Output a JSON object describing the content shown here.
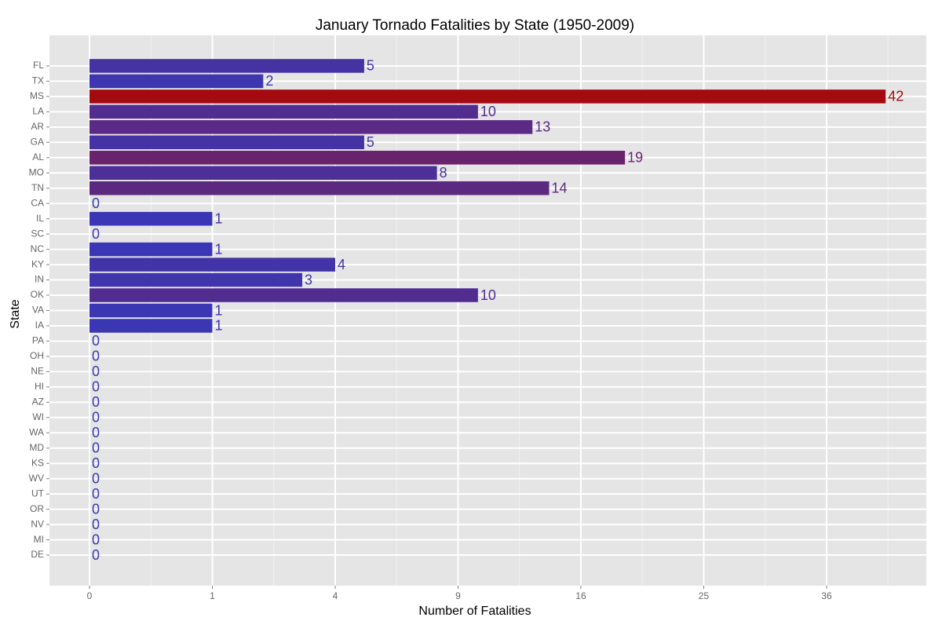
{
  "chart_data": {
    "type": "bar",
    "orientation": "horizontal",
    "title": "January Tornado Fatalities by State (1950-2009)",
    "x_label": "Number of Fatalities",
    "y_label": "State",
    "categories": [
      "FL",
      "TX",
      "MS",
      "LA",
      "AR",
      "GA",
      "AL",
      "MO",
      "TN",
      "CA",
      "IL",
      "SC",
      "NC",
      "KY",
      "IN",
      "OK",
      "VA",
      "IA",
      "PA",
      "OH",
      "NE",
      "HI",
      "AZ",
      "WI",
      "WA",
      "MD",
      "KS",
      "WV",
      "UT",
      "OR",
      "NV",
      "MI",
      "DE"
    ],
    "values": [
      5,
      2,
      42,
      10,
      13,
      5,
      19,
      8,
      14,
      0,
      1,
      0,
      1,
      4,
      3,
      10,
      1,
      1,
      0,
      0,
      0,
      0,
      0,
      0,
      0,
      0,
      0,
      0,
      0,
      0,
      0,
      0,
      0
    ],
    "x_scale": "sqrt",
    "xlim": [
      0,
      46.4
    ],
    "xticks": [
      0,
      1,
      4,
      9,
      16,
      25,
      36
    ],
    "low_color": "#3838b8",
    "high_color": "#a50a10",
    "grid": true
  }
}
